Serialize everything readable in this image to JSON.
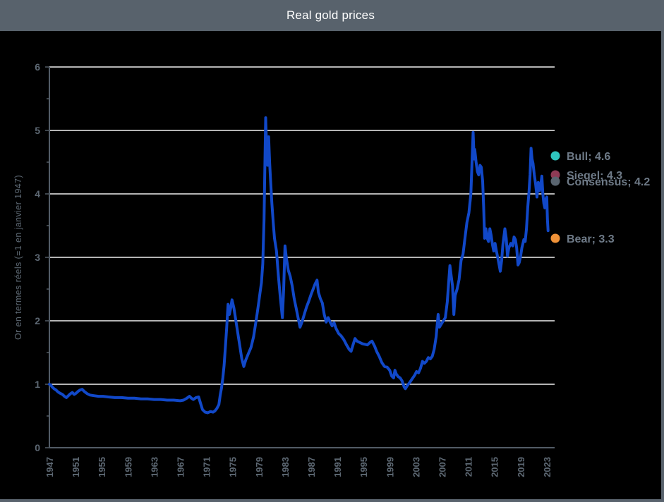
{
  "window": {
    "title": "Real gold prices"
  },
  "colors": {
    "titlebar_bg": "#58626C",
    "title_text": "#FFFFFF",
    "background": "#000000",
    "gridline": "#F0F0F0",
    "axis_line": "#525C66",
    "tick_label": "#5D6873",
    "series_line": "#1148C8",
    "legend_text": "#6E7A87"
  },
  "chart_data": {
    "type": "line",
    "title": "Real gold prices",
    "xlabel": "",
    "ylabel": "Or en termes réels (=1 en janvier 1947)",
    "ylim": [
      0,
      6
    ],
    "xlim": [
      1947,
      2024.2
    ],
    "y_ticks": [
      0,
      1,
      2,
      3,
      4,
      5,
      6
    ],
    "y_minor_step": 0.5,
    "x_ticks": [
      1947,
      1951,
      1955,
      1959,
      1963,
      1967,
      1971,
      1975,
      1979,
      1983,
      1987,
      1991,
      1995,
      1999,
      2003,
      2007,
      2011,
      2015,
      2019,
      2023
    ],
    "grid": "horizontal",
    "legend_position": "right-of-plot",
    "series": [
      {
        "name": "Or en termes réels (=1 en janvier 1947)",
        "color": "#1148C8",
        "points": [
          [
            1947.0,
            1.0
          ],
          [
            1947.2,
            0.99
          ],
          [
            1947.4,
            0.96
          ],
          [
            1947.7,
            0.93
          ],
          [
            1948.0,
            0.91
          ],
          [
            1948.3,
            0.88
          ],
          [
            1948.6,
            0.86
          ],
          [
            1949.0,
            0.84
          ],
          [
            1949.3,
            0.81
          ],
          [
            1949.6,
            0.79
          ],
          [
            1949.9,
            0.82
          ],
          [
            1950.2,
            0.85
          ],
          [
            1950.5,
            0.87
          ],
          [
            1950.8,
            0.84
          ],
          [
            1951.1,
            0.86
          ],
          [
            1951.4,
            0.89
          ],
          [
            1951.7,
            0.91
          ],
          [
            1952.0,
            0.92
          ],
          [
            1952.4,
            0.88
          ],
          [
            1952.8,
            0.85
          ],
          [
            1953.2,
            0.83
          ],
          [
            1953.8,
            0.82
          ],
          [
            1954.5,
            0.81
          ],
          [
            1955.2,
            0.81
          ],
          [
            1956.0,
            0.8
          ],
          [
            1957.0,
            0.79
          ],
          [
            1958.0,
            0.79
          ],
          [
            1959.0,
            0.78
          ],
          [
            1960.0,
            0.78
          ],
          [
            1961.0,
            0.77
          ],
          [
            1962.0,
            0.77
          ],
          [
            1963.0,
            0.76
          ],
          [
            1964.0,
            0.76
          ],
          [
            1965.0,
            0.75
          ],
          [
            1966.0,
            0.75
          ],
          [
            1967.0,
            0.74
          ],
          [
            1967.5,
            0.75
          ],
          [
            1968.0,
            0.78
          ],
          [
            1968.4,
            0.81
          ],
          [
            1968.7,
            0.78
          ],
          [
            1969.0,
            0.76
          ],
          [
            1969.4,
            0.79
          ],
          [
            1969.8,
            0.8
          ],
          [
            1970.1,
            0.7
          ],
          [
            1970.4,
            0.6
          ],
          [
            1970.8,
            0.56
          ],
          [
            1971.2,
            0.55
          ],
          [
            1971.6,
            0.57
          ],
          [
            1972.0,
            0.56
          ],
          [
            1972.3,
            0.58
          ],
          [
            1972.6,
            0.62
          ],
          [
            1972.9,
            0.68
          ],
          [
            1973.1,
            0.83
          ],
          [
            1973.3,
            0.94
          ],
          [
            1973.5,
            1.1
          ],
          [
            1973.7,
            1.3
          ],
          [
            1973.9,
            1.6
          ],
          [
            1974.1,
            1.9
          ],
          [
            1974.3,
            2.26
          ],
          [
            1974.5,
            2.1
          ],
          [
            1974.7,
            2.2
          ],
          [
            1974.9,
            2.33
          ],
          [
            1975.2,
            2.2
          ],
          [
            1975.5,
            2.0
          ],
          [
            1975.8,
            1.8
          ],
          [
            1976.1,
            1.6
          ],
          [
            1976.4,
            1.4
          ],
          [
            1976.7,
            1.28
          ],
          [
            1977.0,
            1.38
          ],
          [
            1977.4,
            1.48
          ],
          [
            1977.8,
            1.58
          ],
          [
            1978.2,
            1.75
          ],
          [
            1978.5,
            1.95
          ],
          [
            1978.8,
            2.15
          ],
          [
            1979.0,
            2.3
          ],
          [
            1979.2,
            2.45
          ],
          [
            1979.4,
            2.6
          ],
          [
            1979.6,
            2.9
          ],
          [
            1979.8,
            3.6
          ],
          [
            1979.95,
            4.6
          ],
          [
            1980.05,
            5.2
          ],
          [
            1980.2,
            4.7
          ],
          [
            1980.35,
            4.45
          ],
          [
            1980.5,
            4.9
          ],
          [
            1980.65,
            4.5
          ],
          [
            1980.8,
            4.2
          ],
          [
            1981.0,
            3.85
          ],
          [
            1981.2,
            3.55
          ],
          [
            1981.4,
            3.3
          ],
          [
            1981.7,
            3.1
          ],
          [
            1982.0,
            2.7
          ],
          [
            1982.3,
            2.35
          ],
          [
            1982.6,
            2.05
          ],
          [
            1982.8,
            2.5
          ],
          [
            1983.0,
            3.18
          ],
          [
            1983.2,
            3.0
          ],
          [
            1983.5,
            2.8
          ],
          [
            1983.8,
            2.7
          ],
          [
            1984.1,
            2.55
          ],
          [
            1984.4,
            2.35
          ],
          [
            1984.7,
            2.2
          ],
          [
            1985.0,
            2.05
          ],
          [
            1985.3,
            1.9
          ],
          [
            1985.6,
            1.98
          ],
          [
            1986.0,
            2.12
          ],
          [
            1986.3,
            2.22
          ],
          [
            1986.6,
            2.3
          ],
          [
            1987.0,
            2.42
          ],
          [
            1987.3,
            2.5
          ],
          [
            1987.6,
            2.58
          ],
          [
            1987.9,
            2.64
          ],
          [
            1988.1,
            2.45
          ],
          [
            1988.4,
            2.35
          ],
          [
            1988.7,
            2.28
          ],
          [
            1989.0,
            2.1
          ],
          [
            1989.3,
            1.98
          ],
          [
            1989.6,
            2.05
          ],
          [
            1989.9,
            1.98
          ],
          [
            1990.2,
            1.92
          ],
          [
            1990.5,
            1.97
          ],
          [
            1990.8,
            1.88
          ],
          [
            1991.2,
            1.8
          ],
          [
            1991.6,
            1.76
          ],
          [
            1992.0,
            1.7
          ],
          [
            1992.4,
            1.62
          ],
          [
            1992.8,
            1.55
          ],
          [
            1993.1,
            1.52
          ],
          [
            1993.4,
            1.62
          ],
          [
            1993.7,
            1.72
          ],
          [
            1994.0,
            1.68
          ],
          [
            1994.4,
            1.66
          ],
          [
            1994.8,
            1.64
          ],
          [
            1995.2,
            1.63
          ],
          [
            1995.6,
            1.62
          ],
          [
            1996.0,
            1.66
          ],
          [
            1996.3,
            1.68
          ],
          [
            1996.7,
            1.6
          ],
          [
            1997.0,
            1.52
          ],
          [
            1997.4,
            1.44
          ],
          [
            1997.8,
            1.34
          ],
          [
            1998.2,
            1.28
          ],
          [
            1998.6,
            1.27
          ],
          [
            1999.0,
            1.22
          ],
          [
            1999.3,
            1.13
          ],
          [
            1999.6,
            1.1
          ],
          [
            1999.8,
            1.22
          ],
          [
            2000.0,
            1.16
          ],
          [
            2000.3,
            1.12
          ],
          [
            2000.6,
            1.1
          ],
          [
            2000.9,
            1.05
          ],
          [
            2001.2,
            0.96
          ],
          [
            2001.4,
            0.93
          ],
          [
            2001.7,
            0.98
          ],
          [
            2002.0,
            1.02
          ],
          [
            2002.4,
            1.08
          ],
          [
            2002.8,
            1.14
          ],
          [
            2003.1,
            1.2
          ],
          [
            2003.4,
            1.18
          ],
          [
            2003.7,
            1.25
          ],
          [
            2004.0,
            1.36
          ],
          [
            2004.3,
            1.33
          ],
          [
            2004.6,
            1.36
          ],
          [
            2004.9,
            1.42
          ],
          [
            2005.2,
            1.4
          ],
          [
            2005.5,
            1.44
          ],
          [
            2005.8,
            1.55
          ],
          [
            2006.1,
            1.75
          ],
          [
            2006.4,
            2.1
          ],
          [
            2006.6,
            1.9
          ],
          [
            2006.9,
            1.95
          ],
          [
            2007.2,
            2.0
          ],
          [
            2007.5,
            2.05
          ],
          [
            2007.8,
            2.3
          ],
          [
            2008.0,
            2.6
          ],
          [
            2008.2,
            2.87
          ],
          [
            2008.4,
            2.7
          ],
          [
            2008.6,
            2.55
          ],
          [
            2008.8,
            2.1
          ],
          [
            2009.0,
            2.4
          ],
          [
            2009.3,
            2.5
          ],
          [
            2009.6,
            2.65
          ],
          [
            2009.9,
            2.95
          ],
          [
            2010.2,
            3.05
          ],
          [
            2010.5,
            3.3
          ],
          [
            2010.8,
            3.55
          ],
          [
            2011.1,
            3.7
          ],
          [
            2011.4,
            4.0
          ],
          [
            2011.6,
            4.55
          ],
          [
            2011.75,
            4.97
          ],
          [
            2011.9,
            4.55
          ],
          [
            2012.0,
            4.7
          ],
          [
            2012.2,
            4.5
          ],
          [
            2012.4,
            4.35
          ],
          [
            2012.6,
            4.3
          ],
          [
            2012.8,
            4.45
          ],
          [
            2013.0,
            4.42
          ],
          [
            2013.2,
            4.2
          ],
          [
            2013.35,
            3.8
          ],
          [
            2013.5,
            3.3
          ],
          [
            2013.7,
            3.45
          ],
          [
            2013.9,
            3.3
          ],
          [
            2014.1,
            3.25
          ],
          [
            2014.3,
            3.45
          ],
          [
            2014.5,
            3.35
          ],
          [
            2014.7,
            3.2
          ],
          [
            2014.9,
            3.1
          ],
          [
            2015.1,
            3.22
          ],
          [
            2015.3,
            3.1
          ],
          [
            2015.6,
            2.95
          ],
          [
            2015.9,
            2.78
          ],
          [
            2016.1,
            2.95
          ],
          [
            2016.3,
            3.2
          ],
          [
            2016.6,
            3.45
          ],
          [
            2016.8,
            3.3
          ],
          [
            2017.0,
            3.02
          ],
          [
            2017.2,
            3.15
          ],
          [
            2017.5,
            3.22
          ],
          [
            2017.8,
            3.18
          ],
          [
            2018.0,
            3.32
          ],
          [
            2018.2,
            3.28
          ],
          [
            2018.4,
            3.15
          ],
          [
            2018.6,
            2.88
          ],
          [
            2018.8,
            2.92
          ],
          [
            2019.0,
            3.02
          ],
          [
            2019.2,
            3.15
          ],
          [
            2019.5,
            3.28
          ],
          [
            2019.7,
            3.25
          ],
          [
            2019.9,
            3.45
          ],
          [
            2020.1,
            3.8
          ],
          [
            2020.3,
            4.05
          ],
          [
            2020.45,
            4.3
          ],
          [
            2020.6,
            4.72
          ],
          [
            2020.75,
            4.55
          ],
          [
            2020.9,
            4.48
          ],
          [
            2021.1,
            4.3
          ],
          [
            2021.3,
            4.15
          ],
          [
            2021.5,
            3.95
          ],
          [
            2021.7,
            4.18
          ],
          [
            2021.9,
            4.05
          ],
          [
            2022.1,
            4.15
          ],
          [
            2022.25,
            4.28
          ],
          [
            2022.4,
            4.0
          ],
          [
            2022.55,
            3.85
          ],
          [
            2022.7,
            3.78
          ],
          [
            2022.85,
            3.92
          ],
          [
            2023.0,
            3.95
          ],
          [
            2023.1,
            3.6
          ],
          [
            2023.2,
            3.42
          ]
        ]
      }
    ],
    "end_markers": [
      {
        "name": "Bull",
        "label": "Bull; 4.6",
        "value": 4.6,
        "color": "#2FC5BF"
      },
      {
        "name": "Siegel",
        "label": "Siegel; 4.3",
        "value": 4.3,
        "color": "#8E3B55"
      },
      {
        "name": "Consensus",
        "label": "Consensus; 4.2",
        "value": 4.2,
        "color": "#5A6570"
      },
      {
        "name": "Bear",
        "label": "Bear; 3.3",
        "value": 3.3,
        "color": "#F09238"
      }
    ]
  }
}
